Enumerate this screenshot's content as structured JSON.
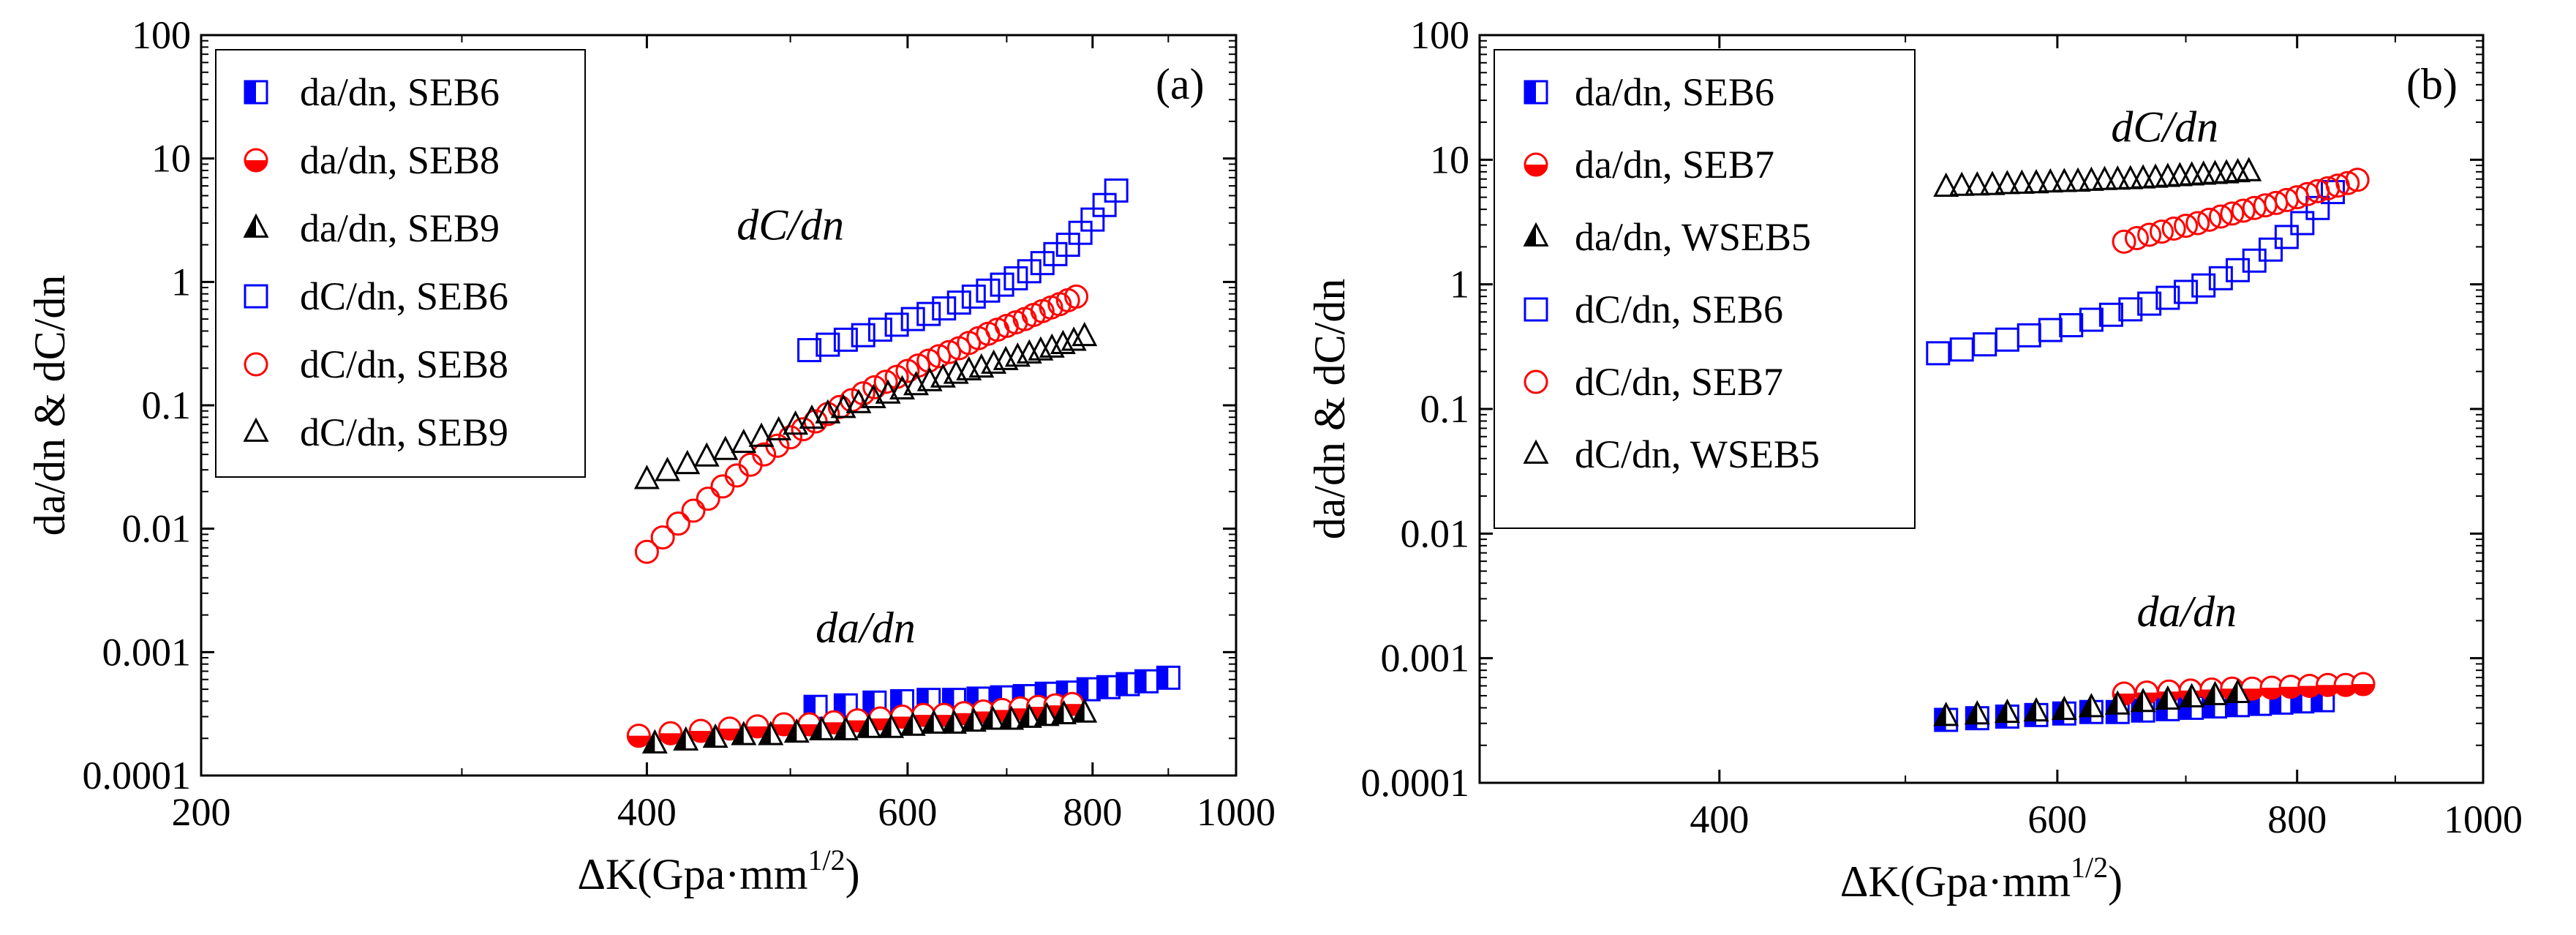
{
  "chart_data": [
    {
      "type": "scatter",
      "panel_label": "(a)",
      "xlabel": "ΔK(Gpa·mm",
      "xlabel_sup": "1/2",
      "xlabel_close": ")",
      "ylabel": "da/dn & dC/dn",
      "xscale": "log",
      "yscale": "log",
      "xlim": [
        200,
        1000
      ],
      "ylim": [
        0.0001,
        100
      ],
      "xticks": [
        200,
        400,
        600,
        800,
        1000
      ],
      "xtick_labels": [
        "200",
        "400",
        "600",
        "800",
        "1000"
      ],
      "yticks": [
        0.0001,
        0.001,
        0.01,
        0.1,
        1,
        10,
        100
      ],
      "ytick_labels": [
        "0.0001",
        "0.001",
        "0.01",
        "0.1",
        "1",
        "10",
        "100"
      ],
      "legend_position": "top-left",
      "annotations": [
        {
          "text": "dC/dn",
          "x": 460,
          "y": 2.2
        },
        {
          "text": "da/dn",
          "x": 520,
          "y": 0.0012
        }
      ],
      "series": [
        {
          "name": "da/dn, SEB6",
          "marker": "square-half",
          "color": "#0000ff",
          "x": [
            520,
            545,
            570,
            595,
            620,
            645,
            670,
            695,
            720,
            745,
            770,
            795,
            820,
            845,
            870,
            900
          ],
          "y": [
            0.00036,
            0.00037,
            0.00039,
            0.0004,
            0.00041,
            0.00041,
            0.00042,
            0.00043,
            0.00044,
            0.00046,
            0.00047,
            0.0005,
            0.00052,
            0.00055,
            0.00058,
            0.00062
          ]
        },
        {
          "name": "da/dn, SEB8",
          "marker": "circle-half",
          "color": "#ff0000",
          "x": [
            395,
            415,
            435,
            455,
            475,
            495,
            515,
            535,
            555,
            575,
            595,
            615,
            635,
            655,
            675,
            695,
            715,
            735,
            755,
            775
          ],
          "y": [
            0.00021,
            0.00022,
            0.00023,
            0.00024,
            0.00025,
            0.00026,
            0.00026,
            0.00027,
            0.00028,
            0.00029,
            0.0003,
            0.00031,
            0.00031,
            0.00032,
            0.00033,
            0.00034,
            0.00035,
            0.00036,
            0.00037,
            0.00038
          ]
        },
        {
          "name": "da/dn, SEB9",
          "marker": "triangle-half",
          "color": "#000000",
          "x": [
            405,
            425,
            445,
            465,
            485,
            505,
            525,
            545,
            565,
            585,
            605,
            625,
            645,
            665,
            685,
            705,
            725,
            745,
            765,
            790
          ],
          "y": [
            0.00018,
            0.00019,
            0.0002,
            0.00021,
            0.00021,
            0.00022,
            0.00023,
            0.00023,
            0.00024,
            0.00024,
            0.00025,
            0.00026,
            0.00026,
            0.00027,
            0.00028,
            0.00028,
            0.00029,
            0.0003,
            0.00031,
            0.00032
          ]
        },
        {
          "name": "dC/dn, SEB6",
          "marker": "square-open",
          "color": "#0000ff",
          "x": [
            515,
            530,
            545,
            560,
            575,
            590,
            605,
            620,
            635,
            650,
            665,
            680,
            695,
            710,
            725,
            740,
            755,
            770,
            785,
            800,
            815,
            830
          ],
          "y": [
            0.28,
            0.31,
            0.34,
            0.37,
            0.41,
            0.45,
            0.5,
            0.55,
            0.61,
            0.68,
            0.76,
            0.85,
            0.95,
            1.07,
            1.22,
            1.42,
            1.68,
            2.0,
            2.5,
            3.2,
            4.2,
            5.5
          ]
        },
        {
          "name": "dC/dn, SEB8",
          "marker": "circle-open",
          "color": "#ff0000",
          "x": [
            400,
            410,
            420,
            430,
            440,
            450,
            460,
            470,
            480,
            490,
            500,
            510,
            520,
            530,
            540,
            550,
            560,
            570,
            580,
            590,
            600,
            610,
            620,
            630,
            640,
            650,
            660,
            670,
            680,
            690,
            700,
            710,
            720,
            730,
            740,
            750,
            760,
            770,
            780
          ],
          "y": [
            0.0065,
            0.0085,
            0.011,
            0.014,
            0.0175,
            0.022,
            0.027,
            0.033,
            0.04,
            0.047,
            0.055,
            0.064,
            0.074,
            0.085,
            0.097,
            0.11,
            0.125,
            0.14,
            0.155,
            0.17,
            0.19,
            0.21,
            0.23,
            0.25,
            0.27,
            0.29,
            0.32,
            0.35,
            0.38,
            0.41,
            0.44,
            0.47,
            0.5,
            0.54,
            0.58,
            0.62,
            0.66,
            0.71,
            0.76
          ]
        },
        {
          "name": "dC/dn, SEB9",
          "marker": "triangle-open",
          "color": "#000000",
          "x": [
            400,
            413,
            426,
            439,
            452,
            465,
            478,
            491,
            504,
            517,
            530,
            543,
            556,
            569,
            582,
            595,
            608,
            621,
            634,
            647,
            660,
            673,
            686,
            699,
            712,
            725,
            738,
            751,
            764,
            777,
            790
          ],
          "y": [
            0.025,
            0.029,
            0.033,
            0.038,
            0.043,
            0.049,
            0.055,
            0.062,
            0.069,
            0.077,
            0.085,
            0.094,
            0.103,
            0.113,
            0.123,
            0.133,
            0.144,
            0.155,
            0.166,
            0.178,
            0.19,
            0.2,
            0.215,
            0.23,
            0.245,
            0.26,
            0.275,
            0.29,
            0.31,
            0.33,
            0.36
          ]
        }
      ]
    },
    {
      "type": "scatter",
      "panel_label": "(b)",
      "xlabel": "ΔK(Gpa·mm",
      "xlabel_sup": "1/2",
      "xlabel_close": ")",
      "ylabel": "da/dn & dC/dn",
      "xscale": "log",
      "yscale": "log",
      "xlim": [
        300,
        1000
      ],
      "ylim": [
        0.0001,
        100
      ],
      "xticks": [
        400,
        600,
        800,
        1000
      ],
      "xtick_labels": [
        "400",
        "600",
        "800",
        "1000"
      ],
      "yticks": [
        0.0001,
        0.001,
        0.01,
        0.1,
        1,
        10,
        100
      ],
      "ytick_labels": [
        "0.0001",
        "0.001",
        "0.01",
        "0.1",
        "1",
        "10",
        "100"
      ],
      "legend_position": "top-left",
      "annotations": [
        {
          "text": "dC/dn",
          "x": 640,
          "y": 14
        },
        {
          "text": "da/dn",
          "x": 660,
          "y": 0.0018
        }
      ],
      "series": [
        {
          "name": "da/dn, SEB6",
          "marker": "square-half",
          "color": "#0000ff",
          "x": [
            525,
            545,
            565,
            585,
            605,
            625,
            645,
            665,
            685,
            705,
            725,
            745,
            765,
            785,
            805,
            825
          ],
          "y": [
            0.00032,
            0.00033,
            0.00034,
            0.00035,
            0.00036,
            0.00037,
            0.00037,
            0.00038,
            0.00039,
            0.0004,
            0.00041,
            0.00042,
            0.00043,
            0.00044,
            0.00045,
            0.00046
          ]
        },
        {
          "name": "da/dn, SEB7",
          "marker": "circle-half",
          "color": "#ff0000",
          "x": [
            650,
            668,
            686,
            704,
            722,
            740,
            758,
            776,
            794,
            812,
            830,
            848,
            866
          ],
          "y": [
            0.00052,
            0.00053,
            0.00054,
            0.00055,
            0.00056,
            0.00057,
            0.00057,
            0.00058,
            0.00059,
            0.0006,
            0.00061,
            0.00061,
            0.00062
          ]
        },
        {
          "name": "da/dn, WSEB5",
          "marker": "triangle-half",
          "color": "#000000",
          "x": [
            525,
            545,
            565,
            585,
            605,
            625,
            645,
            665,
            685,
            705,
            725,
            745
          ],
          "y": [
            0.00034,
            0.00035,
            0.00036,
            0.00037,
            0.00038,
            0.0004,
            0.00042,
            0.00044,
            0.00046,
            0.00048,
            0.0005,
            0.00052
          ]
        },
        {
          "name": "dC/dn, SEB6",
          "marker": "square-open",
          "color": "#0000ff",
          "x": [
            520,
            535,
            550,
            565,
            580,
            595,
            610,
            625,
            640,
            655,
            670,
            685,
            700,
            715,
            730,
            745,
            760,
            775,
            790,
            805,
            820,
            835
          ],
          "y": [
            0.28,
            0.3,
            0.33,
            0.36,
            0.39,
            0.43,
            0.47,
            0.52,
            0.57,
            0.63,
            0.7,
            0.78,
            0.87,
            0.98,
            1.12,
            1.3,
            1.55,
            1.9,
            2.4,
            3.1,
            4.1,
            5.5
          ]
        },
        {
          "name": "dC/dn, SEB7",
          "marker": "circle-open",
          "color": "#ff0000",
          "x": [
            650,
            660,
            670,
            680,
            690,
            700,
            710,
            720,
            730,
            740,
            750,
            760,
            770,
            780,
            790,
            800,
            810,
            820,
            830,
            840,
            850,
            860
          ],
          "y": [
            2.2,
            2.35,
            2.5,
            2.65,
            2.8,
            2.95,
            3.1,
            3.3,
            3.5,
            3.7,
            3.9,
            4.1,
            4.3,
            4.5,
            4.75,
            5.0,
            5.3,
            5.6,
            5.9,
            6.2,
            6.5,
            6.9
          ]
        },
        {
          "name": "dC/dn, WSEB5",
          "marker": "triangle-open",
          "color": "#000000",
          "x": [
            525,
            535,
            545,
            555,
            565,
            575,
            585,
            595,
            605,
            615,
            625,
            635,
            645,
            655,
            665,
            675,
            685,
            695,
            705,
            715,
            725,
            735,
            745,
            755
          ],
          "y": [
            6.0,
            6.1,
            6.15,
            6.2,
            6.3,
            6.35,
            6.4,
            6.5,
            6.55,
            6.6,
            6.7,
            6.8,
            6.85,
            6.9,
            7.0,
            7.1,
            7.2,
            7.3,
            7.4,
            7.5,
            7.6,
            7.7,
            7.85,
            8.0
          ]
        }
      ]
    }
  ]
}
